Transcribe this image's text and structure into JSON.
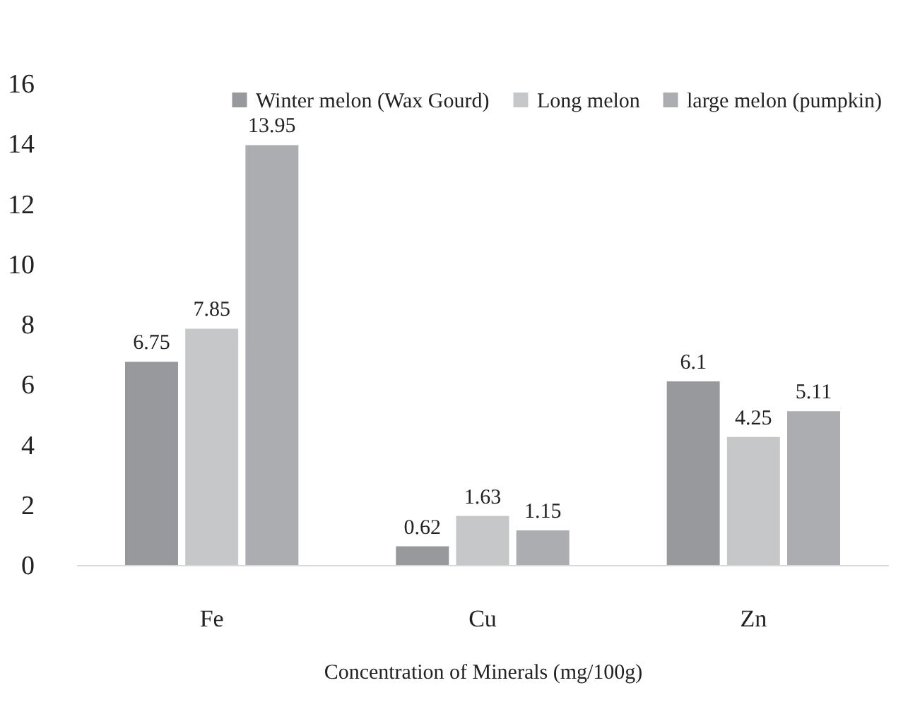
{
  "chart_data": {
    "type": "bar",
    "xlabel": "Concentration of Minerals (mg/100g)",
    "categories": [
      "Fe",
      "Cu",
      "Zn"
    ],
    "series": [
      {
        "name": "Winter melon (Wax Gourd)",
        "color": "#98999d",
        "values": [
          6.75,
          0.62,
          6.1
        ]
      },
      {
        "name": "Long melon",
        "color": "#c6c7c9",
        "values": [
          7.85,
          1.63,
          4.25
        ]
      },
      {
        "name": "large melon (pumpkin)",
        "color": "#acadb1",
        "values": [
          13.95,
          1.15,
          5.11
        ]
      }
    ],
    "ylim": [
      0,
      16
    ],
    "yticks": [
      0,
      2,
      4,
      6,
      8,
      10,
      12,
      14,
      16
    ],
    "data_labels": true,
    "legend": "top right",
    "grid": false
  }
}
